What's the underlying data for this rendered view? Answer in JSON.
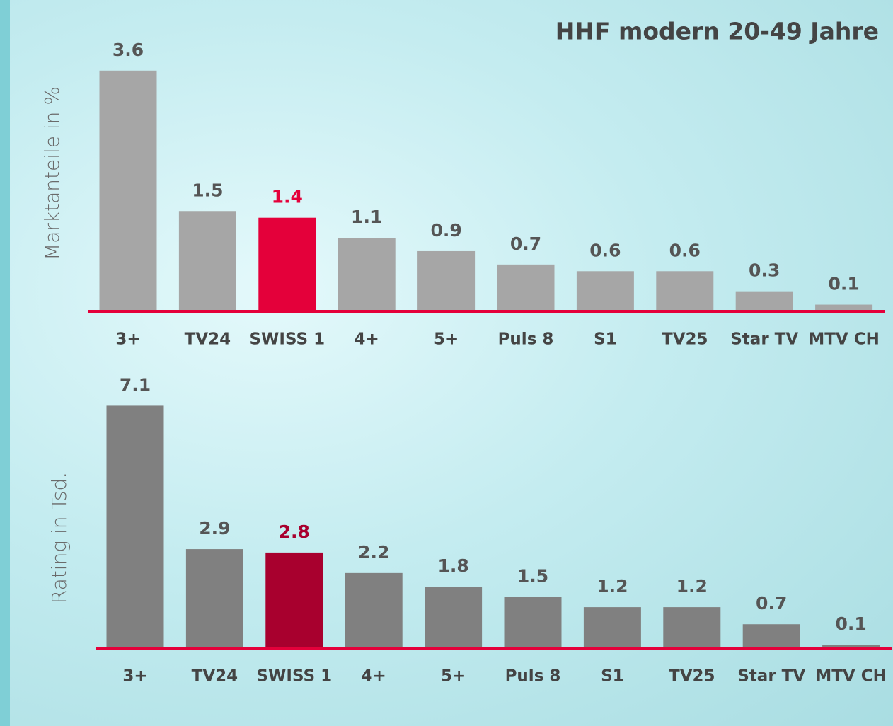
{
  "chart_data": [
    {
      "type": "bar",
      "title": "HHF modern 20-49 Jahre",
      "y_label": "Marktanteile in %",
      "categories": [
        "3+",
        "TV24",
        "SWISS 1",
        "4+",
        "5+",
        "Puls 8",
        "S1",
        "TV25",
        "Star TV",
        "MTV CH"
      ],
      "values": [
        3.6,
        1.5,
        1.4,
        1.1,
        0.9,
        0.7,
        0.6,
        0.6,
        0.3,
        0.1
      ],
      "colors": [
        "#a6a6a6",
        "#a6a6a6",
        "#e4003a",
        "#a6a6a6",
        "#a6a6a6",
        "#a6a6a6",
        "#a6a6a6",
        "#a6a6a6",
        "#a6a6a6",
        "#a6a6a6"
      ],
      "ylim": [
        0,
        4
      ]
    },
    {
      "type": "bar",
      "y_label": "Rating in Tsd.",
      "categories": [
        "3+",
        "TV24",
        "SWISS 1",
        "4+",
        "5+",
        "Puls 8",
        "S1",
        "TV25",
        "Star TV",
        "MTV CH"
      ],
      "values": [
        7.1,
        2.9,
        2.8,
        2.2,
        1.8,
        1.5,
        1.2,
        1.2,
        0.7,
        0.1
      ],
      "colors": [
        "#808080",
        "#808080",
        "#a8002e",
        "#808080",
        "#808080",
        "#808080",
        "#808080",
        "#808080",
        "#808080",
        "#808080"
      ],
      "ylim": [
        0,
        8
      ]
    }
  ]
}
